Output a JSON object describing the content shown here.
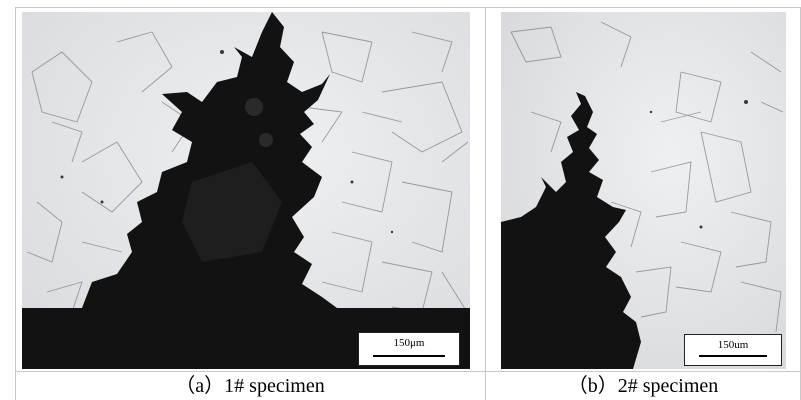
{
  "panels": [
    {
      "caption": "（a）1# specimen",
      "scale_label": "150μm"
    },
    {
      "caption": "（b）2# specimen",
      "scale_label": "150um"
    }
  ],
  "colors": {
    "background": "#e9eaec",
    "pit": "#0f0f0f",
    "grain_boundary": "#7c7f85",
    "border": "#c8c8c8"
  }
}
